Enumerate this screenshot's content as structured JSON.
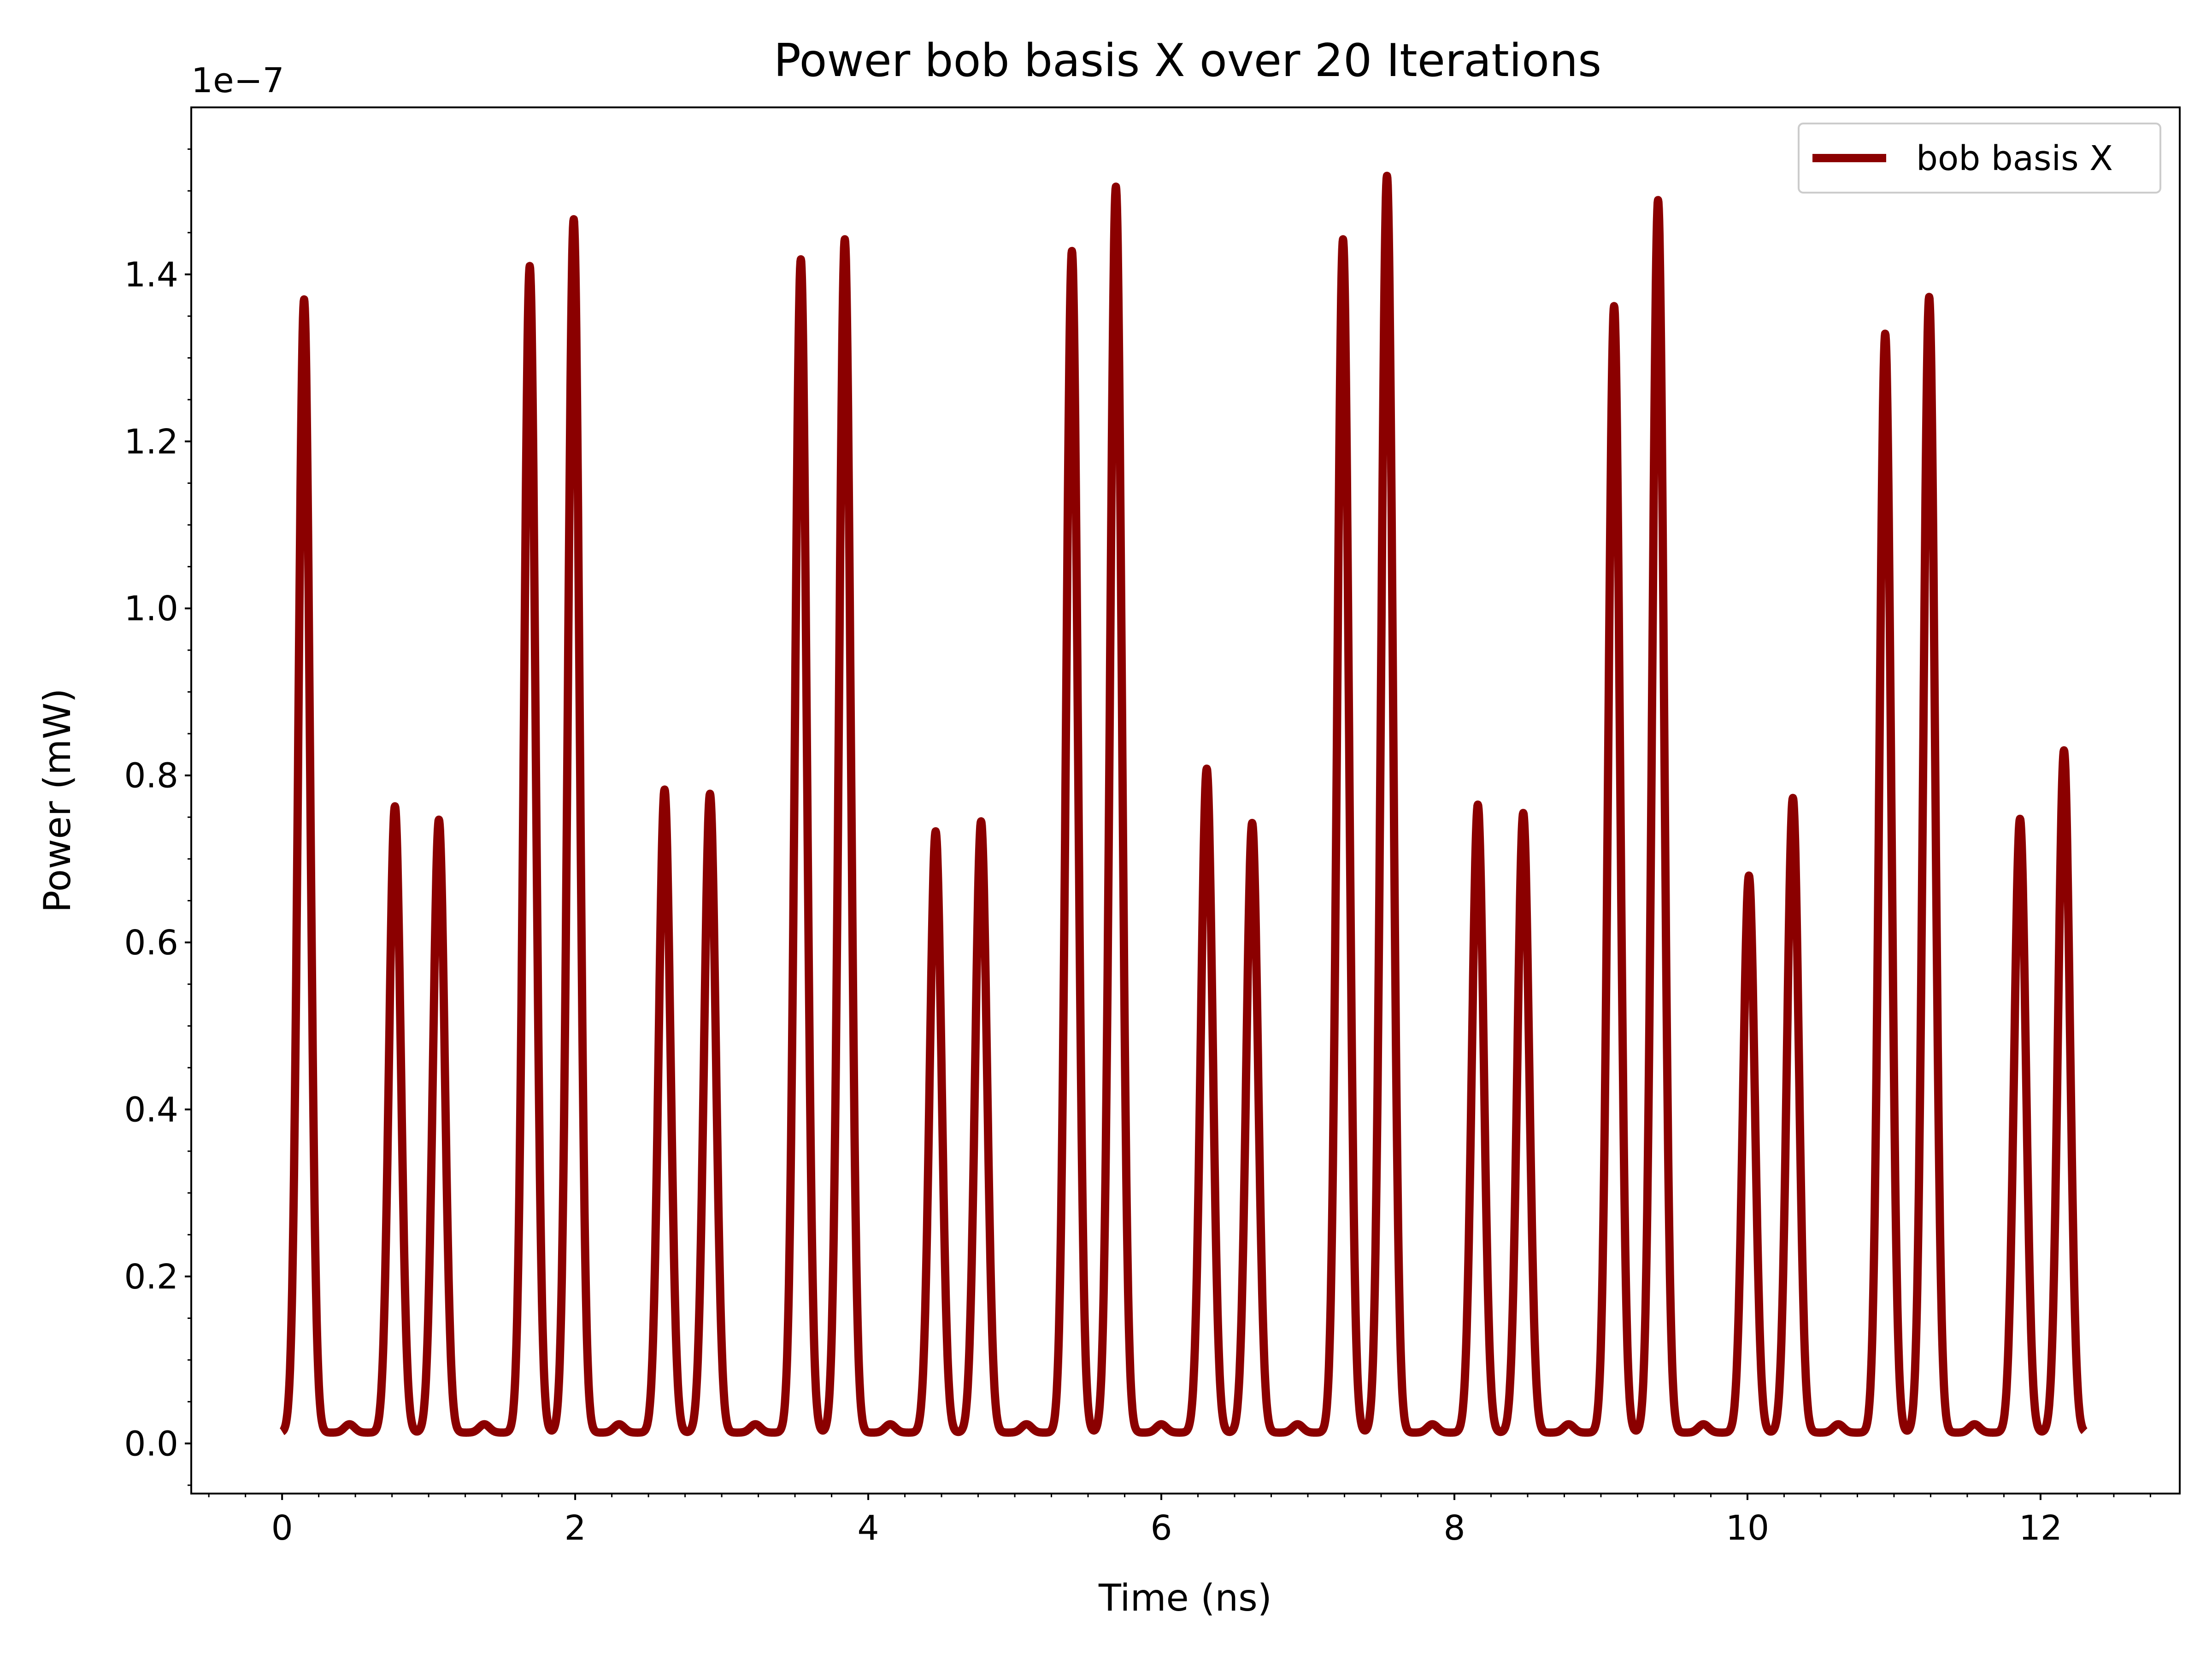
{
  "chart_data": {
    "type": "line",
    "title": "Power bob basis X over 20 Iterations",
    "xlabel": "Time (ns)",
    "ylabel": "Power (mW)",
    "y_offset_label": "1e−7",
    "y_scale": 1e-07,
    "xlim": [
      -0.62,
      12.95
    ],
    "ylim": [
      -0.06,
      1.6
    ],
    "xticks": [
      0,
      2,
      4,
      6,
      8,
      10,
      12
    ],
    "xtick_labels": [
      "0",
      "2",
      "4",
      "6",
      "8",
      "10",
      "12"
    ],
    "yticks": [
      0.0,
      0.2,
      0.4,
      0.6,
      0.8,
      1.0,
      1.2,
      1.4
    ],
    "ytick_labels": [
      "0.0",
      "0.2",
      "0.4",
      "0.6",
      "0.8",
      "1.0",
      "1.2",
      "1.4"
    ],
    "x_minor_step": 0.25,
    "y_minor_step": 0.05,
    "grid": false,
    "legend_position": "upper right",
    "color": "#8b0000",
    "baseline": 0.013,
    "series": [
      {
        "name": "bob basis X",
        "x_range": [
          0,
          12.3
        ],
        "peaks": [
          {
            "t": 0.15,
            "v": 1.37
          },
          {
            "t": 0.77,
            "v": 0.763
          },
          {
            "t": 1.07,
            "v": 0.747
          },
          {
            "t": 1.69,
            "v": 1.41
          },
          {
            "t": 1.99,
            "v": 1.466
          },
          {
            "t": 2.61,
            "v": 0.783
          },
          {
            "t": 2.92,
            "v": 0.778
          },
          {
            "t": 3.54,
            "v": 1.418
          },
          {
            "t": 3.84,
            "v": 1.442
          },
          {
            "t": 4.46,
            "v": 0.733
          },
          {
            "t": 4.77,
            "v": 0.745
          },
          {
            "t": 5.39,
            "v": 1.428
          },
          {
            "t": 5.69,
            "v": 1.505
          },
          {
            "t": 6.31,
            "v": 0.808
          },
          {
            "t": 6.62,
            "v": 0.743
          },
          {
            "t": 7.24,
            "v": 1.442
          },
          {
            "t": 7.54,
            "v": 1.518
          },
          {
            "t": 8.16,
            "v": 0.765
          },
          {
            "t": 8.47,
            "v": 0.755
          },
          {
            "t": 9.09,
            "v": 1.362
          },
          {
            "t": 9.39,
            "v": 1.489
          },
          {
            "t": 10.01,
            "v": 0.68
          },
          {
            "t": 10.31,
            "v": 0.773
          },
          {
            "t": 10.94,
            "v": 1.329
          },
          {
            "t": 11.24,
            "v": 1.373
          },
          {
            "t": 11.86,
            "v": 0.748
          },
          {
            "t": 12.16,
            "v": 0.83
          }
        ],
        "ripples": [
          {
            "t": 0.46,
            "v": 0.023
          },
          {
            "t": 1.38,
            "v": 0.023
          },
          {
            "t": 2.3,
            "v": 0.023
          },
          {
            "t": 3.23,
            "v": 0.023
          },
          {
            "t": 4.15,
            "v": 0.023
          },
          {
            "t": 5.08,
            "v": 0.023
          },
          {
            "t": 6.0,
            "v": 0.023
          },
          {
            "t": 6.93,
            "v": 0.023
          },
          {
            "t": 7.85,
            "v": 0.023
          },
          {
            "t": 8.78,
            "v": 0.023
          },
          {
            "t": 9.7,
            "v": 0.023
          },
          {
            "t": 10.62,
            "v": 0.023
          },
          {
            "t": 11.55,
            "v": 0.023
          }
        ]
      }
    ]
  }
}
